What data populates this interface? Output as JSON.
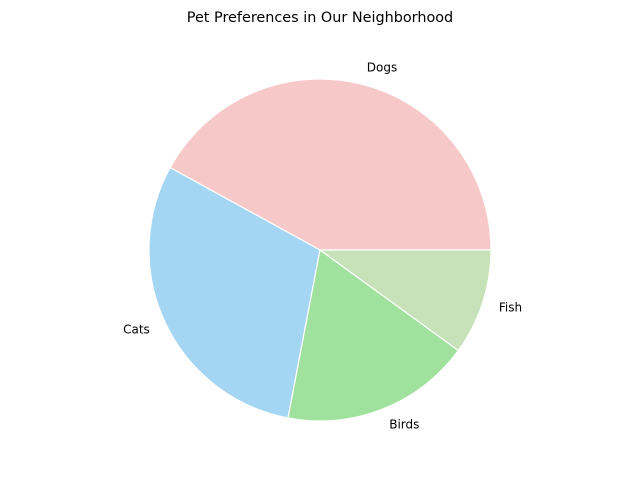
{
  "chart_data": {
    "type": "pie",
    "title": "Pet Preferences in Our Neighborhood",
    "categories": [
      "Dogs",
      "Cats",
      "Birds",
      "Fish"
    ],
    "values": [
      42,
      30,
      18,
      10
    ],
    "colors": [
      "#f7c8c8",
      "#a4d5f2",
      "#a0e29d",
      "#c7e2b8"
    ],
    "start_angle_deg": 0,
    "direction": "counterclockwise",
    "legend": "none"
  }
}
